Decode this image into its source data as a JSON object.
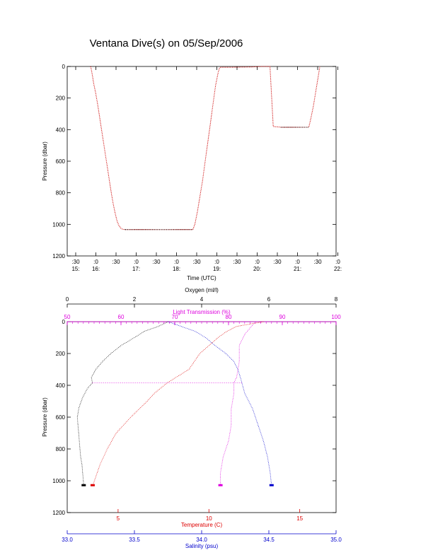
{
  "page_title": "Ventana Dive(s) on 05/Sep/2006",
  "colors": {
    "axes": "#000000",
    "trace_main": "#cc0000",
    "temperature": "#dd0000",
    "salinity": "#0000cc",
    "oxygen": "#000000",
    "light_transmission": "#dd00dd"
  },
  "chart_data": [
    {
      "type": "line",
      "panel": "time-series",
      "title": "Ventana Dive(s) on 05/Sep/2006",
      "xlabel": "Time (UTC)",
      "ylabel": "Pressure (dbar)",
      "xlim": [
        "15:30",
        "22:25"
      ],
      "ylim": [
        1200,
        0
      ],
      "y_ticks": [
        0,
        200,
        400,
        600,
        800,
        1000,
        1200
      ],
      "x_ticks_minutes": [
        ":30",
        ":0",
        ":30",
        ":0",
        ":30",
        ":0",
        ":30",
        ":0",
        ":30",
        ":0",
        ":30",
        ":0",
        ":30",
        ":0"
      ],
      "x_ticks_hours": [
        "15:",
        "16:",
        "",
        "17:",
        "",
        "18:",
        "",
        "19:",
        "",
        "20:",
        "",
        "21:",
        "",
        "22:"
      ],
      "grid": false,
      "series": [
        {
          "x": [
            "16:06",
            "16:07",
            "16:09",
            "16:11",
            "16:14",
            "16:17",
            "16:20",
            "16:23",
            "16:26",
            "16:29",
            "16:32",
            "16:35",
            "16:38",
            "16:41",
            "16:44",
            "16:47",
            "16:50",
            "16:53",
            "16:55",
            "16:57",
            "16:59",
            "17:00",
            "17:30",
            "18:00",
            "18:30",
            "18:44",
            "18:47",
            "18:51",
            "18:55",
            "18:59",
            "19:03",
            "19:07",
            "19:11",
            "19:15",
            "19:19",
            "19:23",
            "19:25",
            "19:27",
            "19:45",
            "20:15",
            "20:30",
            "20:43",
            "20:45",
            "20:48",
            "21:00",
            "21:30",
            "21:43",
            "21:46",
            "21:50",
            "21:54",
            "21:58",
            "22:00"
          ],
          "y": [
            0,
            15,
            60,
            110,
            170,
            240,
            320,
            400,
            480,
            560,
            640,
            720,
            800,
            870,
            930,
            980,
            1010,
            1025,
            1030,
            1032,
            1033,
            1033,
            1033,
            1033,
            1033,
            1033,
            1000,
            920,
            820,
            720,
            600,
            480,
            360,
            240,
            120,
            40,
            10,
            5,
            5,
            3,
            0,
            0,
            150,
            380,
            385,
            385,
            385,
            330,
            250,
            150,
            50,
            0
          ]
        }
      ]
    },
    {
      "type": "scatter",
      "panel": "profile",
      "ylabel": "Pressure (dbar)",
      "ylim": [
        1200,
        0
      ],
      "y_ticks": [
        0,
        200,
        400,
        600,
        800,
        1000,
        1200
      ],
      "grid": false,
      "axes": [
        {
          "key": "oxygen",
          "label": "Oxygen (ml/l)",
          "position": "top",
          "range": [
            0,
            8
          ],
          "ticks": [
            0,
            2,
            4,
            6,
            8
          ]
        },
        {
          "key": "light",
          "label": "Light Transmission (%)",
          "position": "top-inner",
          "range": [
            50,
            100
          ],
          "ticks": [
            50,
            60,
            70,
            80,
            90,
            100
          ]
        },
        {
          "key": "temperature",
          "label": "Temperature (C)",
          "position": "bottom",
          "range": [
            2.2,
            17.0
          ],
          "ticks": [
            5,
            10,
            15
          ]
        },
        {
          "key": "salinity",
          "label": "Salinity (psu)",
          "position": "bottom-outer",
          "range": [
            33.0,
            35.0
          ],
          "ticks": [
            "33.0",
            "33.5",
            "34.0",
            "34.5",
            "35.0"
          ]
        }
      ],
      "series": [
        {
          "axis": "oxygen",
          "p": [
            0,
            30,
            60,
            100,
            150,
            200,
            250,
            300,
            350,
            385,
            420,
            480,
            540,
            600,
            650,
            700,
            750,
            800,
            850,
            900,
            950,
            1000,
            1030
          ],
          "v": [
            3.0,
            2.7,
            2.3,
            2.0,
            1.6,
            1.3,
            1.05,
            0.85,
            0.72,
            0.75,
            0.6,
            0.45,
            0.35,
            0.3,
            0.32,
            0.34,
            0.36,
            0.38,
            0.4,
            0.44,
            0.46,
            0.48,
            0.49
          ]
        },
        {
          "axis": "light",
          "p": [
            0,
            40,
            80,
            150,
            250,
            350,
            385,
            450,
            550,
            650,
            750,
            850,
            950,
            1030
          ],
          "v": [
            85,
            84,
            83,
            82,
            82,
            81.5,
            81,
            81,
            80.5,
            80.5,
            80,
            79,
            78.5,
            78.5
          ]
        },
        {
          "axis": "temperature",
          "p": [
            0,
            30,
            60,
            100,
            150,
            200,
            250,
            300,
            385,
            450,
            500,
            600,
            700,
            800,
            900,
            1000,
            1030
          ],
          "v": [
            13.0,
            11.5,
            11.0,
            10.5,
            10.0,
            9.5,
            9.2,
            8.9,
            7.7,
            7.0,
            6.6,
            5.7,
            4.9,
            4.4,
            4.0,
            3.7,
            3.6
          ]
        },
        {
          "axis": "salinity",
          "p": [
            0,
            30,
            60,
            100,
            150,
            200,
            250,
            300,
            385,
            450,
            550,
            650,
            750,
            850,
            950,
            1030
          ],
          "v": [
            33.75,
            33.85,
            33.95,
            34.03,
            34.1,
            34.18,
            34.24,
            34.27,
            34.3,
            34.32,
            34.38,
            34.42,
            34.46,
            34.49,
            34.51,
            34.52
          ]
        }
      ]
    }
  ]
}
